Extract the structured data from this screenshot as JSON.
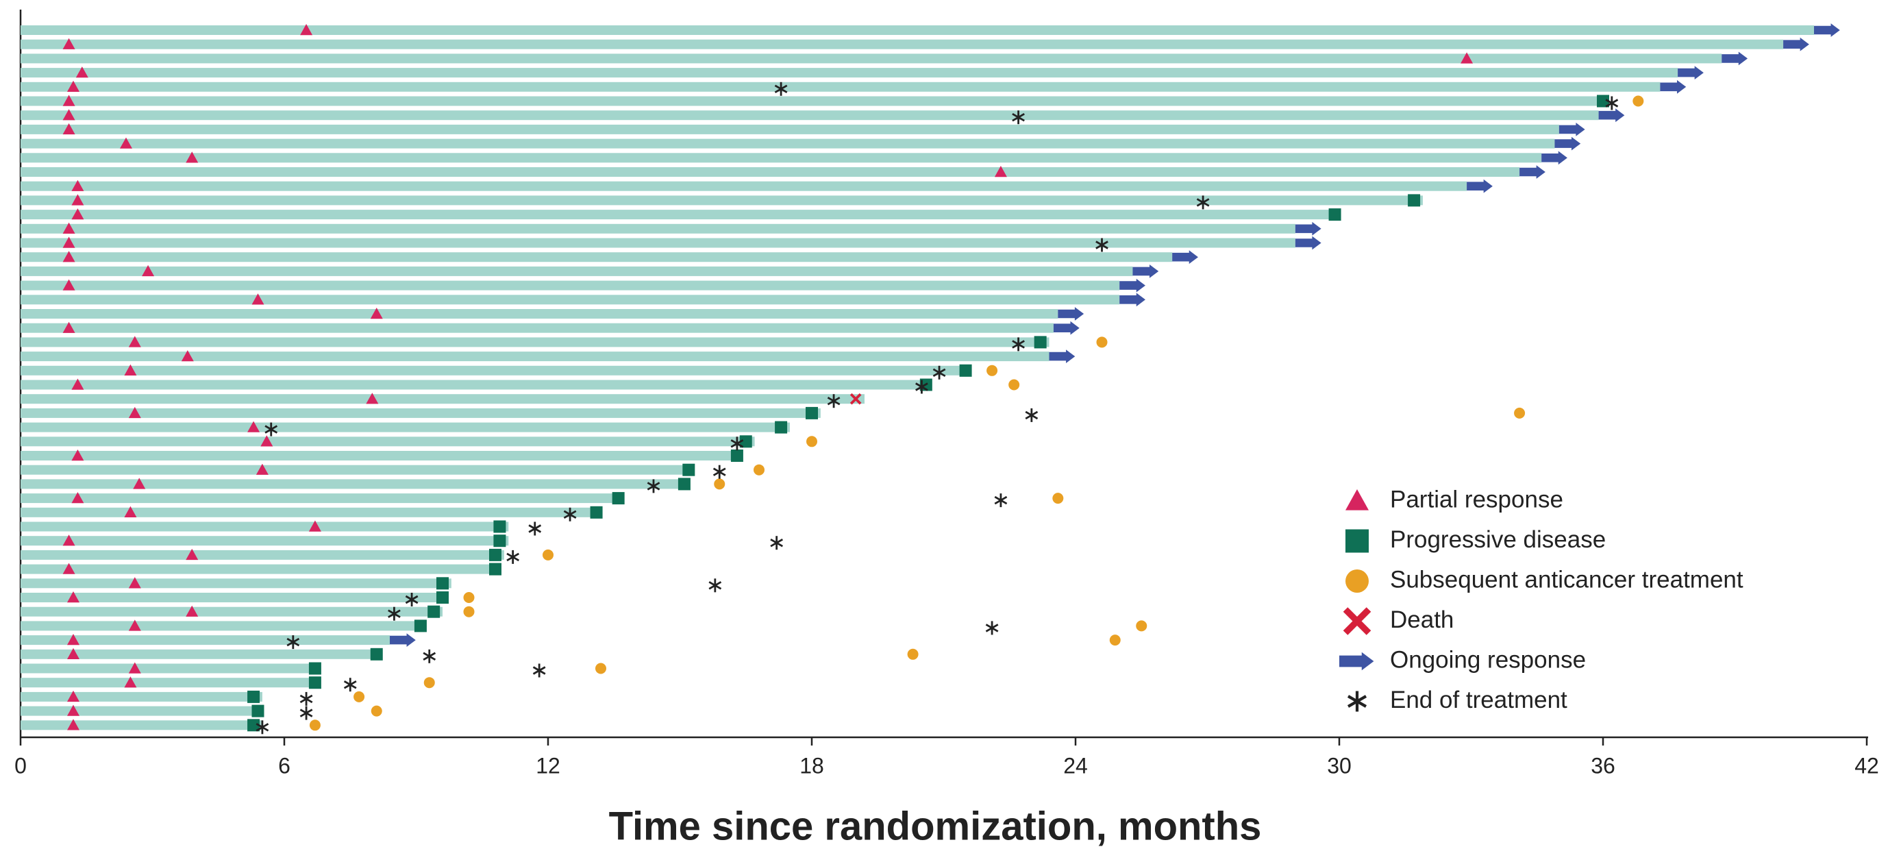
{
  "chart_data": {
    "type": "swimmer",
    "xlabel": "Time since randomization, months",
    "xlim": [
      0,
      42
    ],
    "xticks": [
      0,
      6,
      12,
      18,
      24,
      30,
      36,
      42
    ],
    "bar_color": "#a3d5cc",
    "values": [
      40.8,
      40.1,
      38.7,
      37.7,
      37.3,
      36.1,
      35.9,
      35.0,
      34.9,
      34.6,
      34.1,
      32.9,
      31.9,
      30.0,
      29.0,
      29.0,
      26.2,
      25.3,
      25.0,
      25.0,
      23.6,
      23.5,
      23.4,
      23.4,
      21.6,
      20.7,
      19.2,
      18.2,
      17.5,
      16.7,
      16.4,
      15.3,
      15.2,
      13.7,
      13.2,
      11.1,
      11.1,
      11.0,
      10.9,
      9.8,
      9.7,
      9.6,
      9.2,
      8.4,
      8.2,
      6.8,
      6.8,
      5.5,
      5.5,
      5.5
    ],
    "series": [
      {
        "name": "Partial response",
        "color": "#d6245f",
        "marker": "triangle",
        "values": [
          6.5,
          1.1,
          32.9,
          1.4,
          1.2,
          1.1,
          1.1,
          1.1,
          2.4,
          3.9,
          22.3,
          1.3,
          1.3,
          1.3,
          1.1,
          1.1,
          1.1,
          2.9,
          1.1,
          5.4,
          8.1,
          1.1,
          2.6,
          3.8,
          2.5,
          1.3,
          8.0,
          2.6,
          5.3,
          5.6,
          1.3,
          5.5,
          2.7,
          1.3,
          2.5,
          6.7,
          1.1,
          3.9,
          1.1,
          2.6,
          1.2,
          3.9,
          2.6,
          1.2,
          1.2,
          2.6,
          2.5,
          1.2,
          1.2,
          1.2
        ]
      },
      {
        "name": "Progressive disease",
        "color": "#0f7055",
        "marker": "square",
        "values": [
          null,
          null,
          null,
          null,
          null,
          36.0,
          null,
          null,
          null,
          null,
          null,
          null,
          31.7,
          29.9,
          null,
          null,
          null,
          null,
          null,
          null,
          null,
          null,
          23.2,
          null,
          21.5,
          20.6,
          null,
          18.0,
          17.3,
          16.5,
          16.3,
          15.2,
          15.1,
          13.6,
          13.1,
          10.9,
          10.9,
          10.8,
          10.8,
          9.6,
          9.6,
          9.4,
          9.1,
          null,
          8.1,
          6.7,
          6.7,
          5.3,
          5.4,
          5.3
        ]
      },
      {
        "name": "Subsequent anticancer treatment",
        "color": "#e9a024",
        "marker": "circle",
        "values": [
          null,
          null,
          null,
          null,
          null,
          36.8,
          null,
          null,
          null,
          null,
          null,
          null,
          null,
          null,
          null,
          null,
          null,
          null,
          null,
          null,
          null,
          null,
          24.6,
          null,
          22.1,
          22.6,
          null,
          34.1,
          null,
          18.0,
          null,
          16.8,
          15.9,
          23.6,
          null,
          null,
          null,
          12.0,
          null,
          null,
          10.2,
          10.2,
          25.5,
          24.9,
          20.3,
          13.2,
          9.3,
          7.7,
          8.1,
          6.7
        ]
      },
      {
        "name": "Death",
        "color": "#d6203a",
        "marker": "x",
        "values": [
          null,
          null,
          null,
          null,
          null,
          null,
          null,
          null,
          null,
          null,
          null,
          null,
          null,
          null,
          null,
          null,
          null,
          null,
          null,
          null,
          null,
          null,
          null,
          null,
          null,
          null,
          19.0,
          null,
          null,
          null,
          null,
          null,
          null,
          null,
          null,
          null,
          null,
          null,
          null,
          null,
          null,
          null,
          null,
          null,
          null,
          null,
          null,
          null,
          null,
          null
        ]
      },
      {
        "name": "Ongoing response",
        "color": "#3e54a3",
        "marker": "arrow",
        "values": [
          40.8,
          40.1,
          38.7,
          37.7,
          37.3,
          null,
          35.9,
          35.0,
          34.9,
          34.6,
          34.1,
          32.9,
          null,
          null,
          29.0,
          29.0,
          26.2,
          25.3,
          25.0,
          25.0,
          23.6,
          23.5,
          null,
          23.4,
          null,
          null,
          null,
          null,
          null,
          null,
          null,
          null,
          null,
          null,
          null,
          null,
          null,
          null,
          null,
          null,
          null,
          null,
          null,
          8.4,
          null,
          null,
          null,
          null,
          null,
          null
        ]
      },
      {
        "name": "End of treatment",
        "color": "#222222",
        "marker": "asterisk",
        "values": [
          null,
          null,
          null,
          null,
          17.3,
          36.2,
          22.7,
          null,
          null,
          null,
          null,
          null,
          26.9,
          null,
          null,
          24.6,
          null,
          null,
          null,
          null,
          null,
          null,
          22.7,
          null,
          20.9,
          20.5,
          18.5,
          23.0,
          5.7,
          16.3,
          null,
          15.9,
          14.4,
          22.3,
          12.5,
          11.7,
          17.2,
          11.2,
          null,
          15.8,
          8.9,
          8.5,
          22.1,
          6.2,
          9.3,
          11.8,
          7.5,
          6.5,
          6.5,
          5.5
        ]
      }
    ]
  }
}
